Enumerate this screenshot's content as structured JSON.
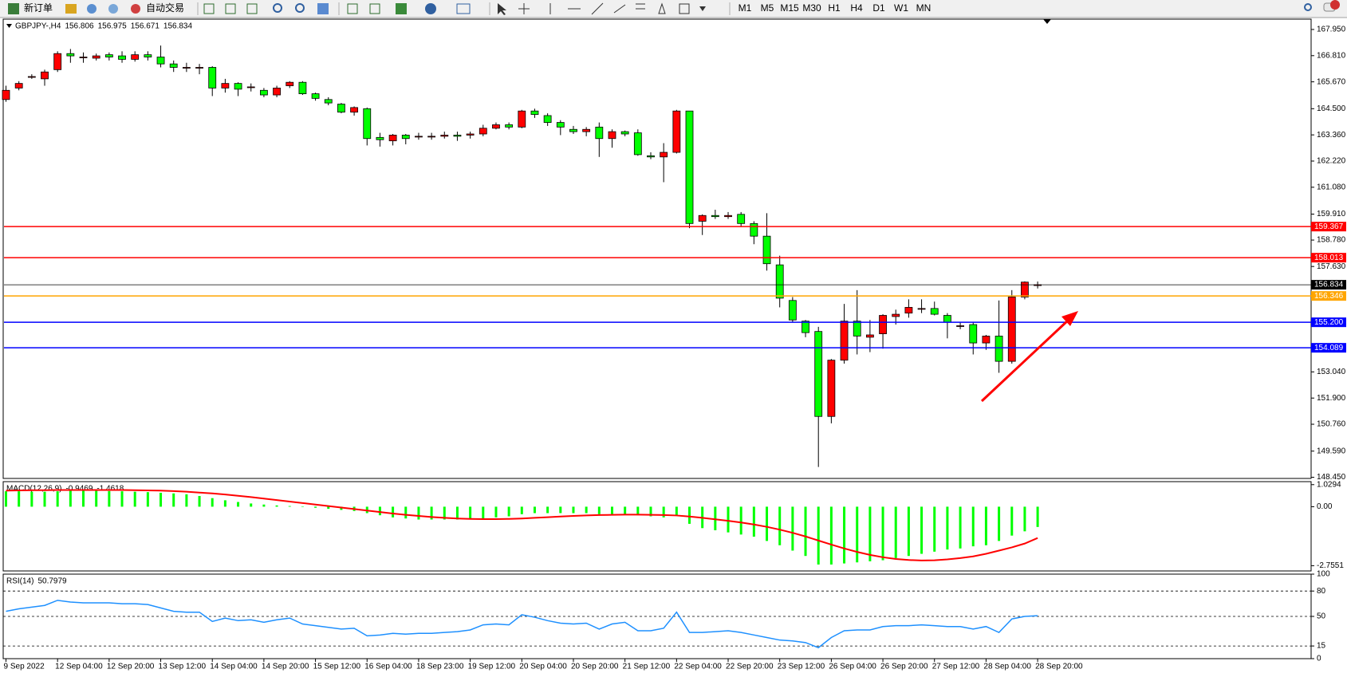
{
  "toolbar": {
    "new_order": "新订单",
    "auto_trading": "自动交易",
    "timeframes": [
      "M1",
      "M5",
      "M15",
      "M30",
      "H1",
      "H4",
      "D1",
      "W1",
      "MN"
    ]
  },
  "chart_data": [
    {
      "type": "candlestick",
      "title": "GBPJPY-,H4",
      "quote": [
        156.806,
        156.975,
        156.671,
        156.834
      ],
      "categories": [
        "9 Sep 2022",
        null,
        null,
        null,
        "12 Sep 04:00",
        null,
        null,
        null,
        "12 Sep 20:00",
        null,
        null,
        null,
        "13 Sep 12:00",
        null,
        null,
        null,
        "14 Sep 04:00",
        null,
        null,
        null,
        "14 Sep 20:00",
        null,
        null,
        null,
        "15 Sep 12:00",
        null,
        null,
        null,
        "16 Sep 04:00",
        null,
        null,
        null,
        "18 Sep 23:00",
        null,
        null,
        null,
        "19 Sep 12:00",
        null,
        null,
        null,
        "20 Sep 04:00",
        null,
        null,
        null,
        "20 Sep 20:00",
        null,
        null,
        null,
        "21 Sep 12:00",
        null,
        null,
        null,
        "22 Sep 04:00",
        null,
        null,
        null,
        "22 Sep 20:00",
        null,
        null,
        null,
        "23 Sep 12:00",
        null,
        null,
        null,
        "26 Sep 04:00",
        null,
        null,
        null,
        "26 Sep 20:00",
        null,
        null,
        null,
        "27 Sep 12:00",
        null,
        null,
        null,
        "28 Sep 04:00",
        null,
        null,
        null,
        "28 Sep 20:00"
      ],
      "open": [
        164.9,
        165.4,
        165.9,
        165.8,
        166.2,
        166.9,
        166.75,
        166.7,
        166.85,
        166.8,
        166.65,
        166.85,
        166.75,
        166.45,
        166.3,
        166.3,
        166.3,
        165.4,
        165.6,
        165.45,
        165.3,
        165.1,
        165.5,
        165.65,
        165.15,
        164.9,
        164.7,
        164.35,
        164.5,
        163.25,
        163.1,
        163.35,
        163.3,
        163.3,
        163.3,
        163.35,
        163.35,
        163.4,
        163.65,
        163.8,
        163.7,
        164.4,
        164.2,
        163.9,
        163.6,
        163.5,
        163.7,
        163.2,
        163.5,
        163.45,
        162.45,
        162.4,
        162.6,
        164.4,
        159.6,
        159.85,
        159.8,
        159.9,
        159.5,
        158.95,
        157.7,
        156.15,
        155.25,
        154.8,
        151.1,
        153.55,
        155.25,
        154.55,
        154.7,
        155.45,
        155.6,
        155.8,
        155.8,
        155.5,
        155.05,
        155.1,
        154.3,
        154.6,
        153.5,
        156.3,
        156.806
      ],
      "high": [
        165.5,
        165.7,
        166.0,
        166.2,
        167.0,
        167.1,
        166.95,
        166.9,
        166.95,
        167.0,
        167.0,
        167.0,
        167.25,
        166.6,
        166.5,
        166.45,
        166.35,
        165.8,
        165.65,
        165.6,
        165.4,
        165.5,
        165.7,
        165.7,
        165.2,
        165.0,
        164.75,
        164.6,
        164.55,
        163.45,
        163.4,
        163.4,
        163.45,
        163.45,
        163.5,
        163.5,
        163.5,
        163.8,
        163.9,
        163.9,
        164.45,
        164.5,
        164.3,
        164.0,
        163.75,
        163.7,
        163.9,
        163.6,
        163.55,
        163.6,
        162.6,
        163.0,
        164.45,
        164.4,
        159.9,
        160.1,
        160.0,
        160.0,
        159.6,
        159.95,
        158.1,
        156.3,
        155.3,
        155.0,
        153.6,
        156.0,
        156.6,
        155.3,
        155.55,
        155.75,
        156.2,
        156.2,
        156.1,
        155.6,
        155.2,
        155.2,
        154.65,
        156.15,
        156.6,
        156.98,
        156.975
      ],
      "low": [
        164.8,
        165.3,
        165.8,
        165.5,
        166.1,
        166.5,
        166.5,
        166.6,
        166.6,
        166.5,
        166.55,
        166.6,
        166.3,
        166.1,
        166.1,
        166.0,
        165.05,
        165.2,
        165.05,
        165.25,
        165.0,
        165.0,
        165.4,
        165.1,
        164.85,
        164.65,
        164.3,
        164.2,
        162.9,
        162.85,
        162.9,
        162.95,
        163.15,
        163.15,
        163.2,
        163.1,
        163.2,
        163.3,
        163.6,
        163.6,
        163.65,
        164.1,
        163.75,
        163.35,
        163.4,
        163.3,
        162.4,
        162.8,
        163.3,
        162.45,
        162.3,
        161.3,
        162.55,
        159.3,
        159.0,
        159.7,
        159.7,
        159.35,
        158.6,
        157.45,
        155.85,
        155.2,
        154.55,
        148.9,
        150.8,
        153.4,
        153.8,
        153.9,
        154.05,
        155.1,
        155.4,
        155.6,
        155.5,
        154.5,
        154.9,
        153.8,
        154.0,
        153.0,
        153.4,
        156.2,
        156.671
      ],
      "close": [
        165.3,
        165.6,
        165.9,
        166.1,
        166.9,
        166.8,
        166.75,
        166.8,
        166.75,
        166.65,
        166.85,
        166.75,
        166.45,
        166.3,
        166.3,
        166.3,
        165.4,
        165.6,
        165.35,
        165.45,
        165.1,
        165.4,
        165.65,
        165.15,
        164.95,
        164.75,
        164.35,
        164.55,
        163.2,
        163.15,
        163.35,
        163.2,
        163.3,
        163.3,
        163.35,
        163.3,
        163.4,
        163.65,
        163.8,
        163.7,
        164.4,
        164.25,
        163.9,
        163.7,
        163.5,
        163.6,
        163.2,
        163.5,
        163.4,
        162.5,
        162.4,
        162.6,
        164.4,
        159.5,
        159.85,
        159.8,
        159.85,
        159.5,
        158.95,
        157.75,
        156.25,
        155.3,
        154.75,
        151.1,
        153.55,
        155.25,
        154.6,
        154.65,
        155.5,
        155.55,
        155.85,
        155.8,
        155.55,
        155.2,
        155.05,
        154.3,
        154.6,
        153.5,
        156.3,
        156.95,
        156.834
      ],
      "up_color": "#ff0000",
      "down_color": "#00ff00",
      "ylim": [
        148.4,
        168.4
      ],
      "yticks": [
        {
          "value": 167.95,
          "label": "167.950"
        },
        {
          "value": 166.81,
          "label": "166.810"
        },
        {
          "value": 165.67,
          "label": "165.670"
        },
        {
          "value": 164.5,
          "label": "164.500"
        },
        {
          "value": 163.36,
          "label": "163.360"
        },
        {
          "value": 162.22,
          "label": "162.220"
        },
        {
          "value": 161.08,
          "label": "161.080"
        },
        {
          "value": 159.91,
          "label": "159.910"
        },
        {
          "value": 158.78,
          "label": "158.780"
        },
        {
          "value": 157.63,
          "label": "157.630"
        },
        {
          "value": 153.04,
          "label": "153.040"
        },
        {
          "value": 151.9,
          "label": "151.900"
        },
        {
          "value": 150.76,
          "label": "150.760"
        },
        {
          "value": 149.59,
          "label": "149.590"
        },
        {
          "value": 148.45,
          "label": "148.450"
        }
      ],
      "levels": [
        {
          "value": 159.367,
          "color": "#ff0000"
        },
        {
          "value": 158.013,
          "color": "#ff0000"
        },
        {
          "value": 156.834,
          "color": "#000000"
        },
        {
          "value": 156.346,
          "color": "#ffa500"
        },
        {
          "value": 155.2,
          "label": "155.200",
          "color": "#0000ff"
        },
        {
          "value": 154.089,
          "color": "#0000ff"
        }
      ]
    },
    {
      "type": "macd",
      "title": "MACD(12,26,9)",
      "readout": [
        -0.9469,
        -1.4618
      ],
      "series": [
        {
          "color": "#00ff00",
          "values": [
            0.72,
            0.72,
            0.7,
            0.7,
            0.72,
            0.75,
            0.75,
            0.74,
            0.73,
            0.72,
            0.7,
            0.68,
            0.65,
            0.62,
            0.58,
            0.5,
            0.4,
            0.3,
            0.22,
            0.15,
            0.1,
            0.06,
            0.03,
            0.0,
            -0.05,
            -0.1,
            -0.15,
            -0.2,
            -0.3,
            -0.4,
            -0.5,
            -0.55,
            -0.6,
            -0.6,
            -0.6,
            -0.6,
            -0.58,
            -0.55,
            -0.5,
            -0.45,
            -0.35,
            -0.3,
            -0.3,
            -0.3,
            -0.3,
            -0.3,
            -0.35,
            -0.35,
            -0.35,
            -0.4,
            -0.45,
            -0.5,
            -0.4,
            -0.8,
            -1.0,
            -1.1,
            -1.2,
            -1.3,
            -1.4,
            -1.6,
            -1.8,
            -2.05,
            -2.3,
            -2.7,
            -2.7,
            -2.65,
            -2.6,
            -2.55,
            -2.5,
            -2.4,
            -2.3,
            -2.2,
            -2.1,
            -2.0,
            -1.95,
            -1.85,
            -1.8,
            -1.6,
            -1.35,
            -1.15,
            -0.9469
          ]
        },
        {
          "color": "#ff0000",
          "values": [
            0.75,
            0.76,
            0.77,
            0.77,
            0.78,
            0.78,
            0.78,
            0.78,
            0.78,
            0.78,
            0.77,
            0.76,
            0.75,
            0.73,
            0.7,
            0.66,
            0.62,
            0.57,
            0.51,
            0.45,
            0.38,
            0.31,
            0.24,
            0.17,
            0.1,
            0.03,
            -0.04,
            -0.11,
            -0.18,
            -0.25,
            -0.32,
            -0.38,
            -0.43,
            -0.48,
            -0.52,
            -0.55,
            -0.57,
            -0.58,
            -0.58,
            -0.57,
            -0.55,
            -0.52,
            -0.49,
            -0.46,
            -0.43,
            -0.41,
            -0.39,
            -0.38,
            -0.37,
            -0.37,
            -0.38,
            -0.39,
            -0.41,
            -0.46,
            -0.52,
            -0.59,
            -0.66,
            -0.74,
            -0.83,
            -0.94,
            -1.07,
            -1.22,
            -1.39,
            -1.58,
            -1.77,
            -1.95,
            -2.11,
            -2.25,
            -2.36,
            -2.44,
            -2.49,
            -2.51,
            -2.5,
            -2.46,
            -2.4,
            -2.32,
            -2.2,
            -2.05,
            -1.9,
            -1.72,
            -1.4618
          ]
        }
      ],
      "ylim": [
        -3.0,
        1.17
      ],
      "yticks": [
        1.0294,
        {
          "value": 0,
          "label": "0.00"
        },
        -2.7551
      ]
    },
    {
      "type": "line",
      "title": "RSI(14)",
      "readout": [
        50.7979
      ],
      "color": "#1e90ff",
      "values": [
        56,
        59,
        61,
        63,
        69,
        67,
        66,
        66,
        66,
        65,
        65,
        64,
        60,
        56,
        55,
        55,
        44,
        48,
        45,
        46,
        43,
        46,
        48,
        41,
        39,
        37,
        35,
        36,
        27,
        28,
        30,
        29,
        30,
        30,
        31,
        32,
        34,
        40,
        41,
        40,
        52,
        49,
        45,
        42,
        41,
        42,
        35,
        41,
        43,
        33,
        33,
        36,
        55,
        31,
        31,
        32,
        33,
        31,
        28,
        25,
        22,
        21,
        19,
        13,
        25,
        33,
        34,
        34,
        38,
        39,
        39,
        40,
        39,
        38,
        38,
        35,
        38,
        31,
        47,
        50,
        50.7979
      ],
      "ylim": [
        0,
        100
      ],
      "yticks": [
        100,
        80,
        50,
        15,
        0
      ],
      "levels": [
        80,
        50,
        15
      ]
    }
  ]
}
